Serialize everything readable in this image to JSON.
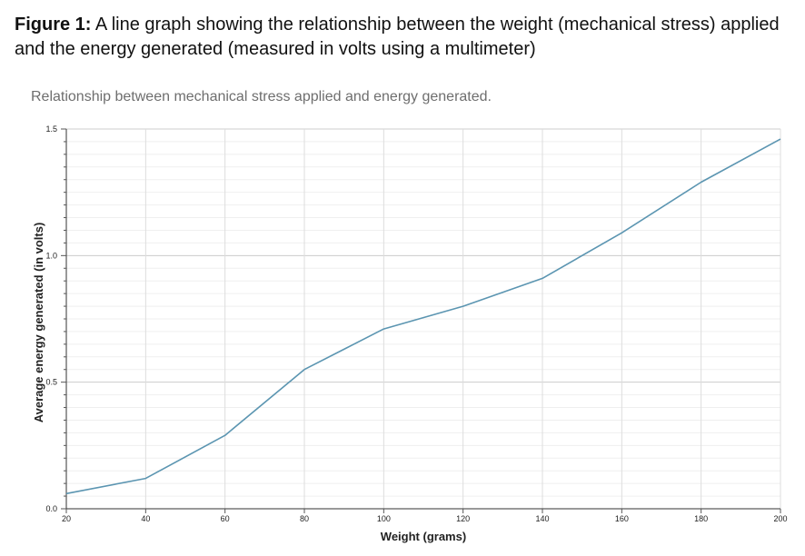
{
  "figure": {
    "label": "Figure 1:",
    "caption": "A line graph showing the relationship between the weight (mechanical stress) applied and the energy generated (measured in volts using a multimeter)"
  },
  "chart_data": {
    "type": "line",
    "title": "Relationship between mechanical stress applied and energy generated.",
    "xlabel": "Weight (grams)",
    "ylabel": "Average energy generated (in volts)",
    "xlim": [
      20,
      200
    ],
    "ylim": [
      0,
      1.5
    ],
    "x_ticks": [
      20,
      40,
      60,
      80,
      100,
      120,
      140,
      160,
      180,
      200
    ],
    "y_ticks": [
      "0.0",
      "0.5",
      "1.0",
      "1.5"
    ],
    "grid": true,
    "line_color": "#5b95b1",
    "series": [
      {
        "x": [
          20,
          40,
          60,
          80,
          100,
          120,
          140,
          160,
          180,
          200
        ],
        "values": [
          0.06,
          0.12,
          0.29,
          0.55,
          0.71,
          0.8,
          0.91,
          1.09,
          1.29,
          1.46
        ]
      }
    ]
  }
}
